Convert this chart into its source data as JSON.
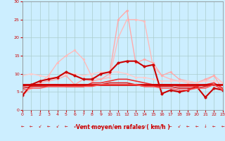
{
  "xlabel": "Vent moyen/en rafales ( km/h )",
  "xlim": [
    0,
    23
  ],
  "ylim": [
    0,
    30
  ],
  "yticks": [
    0,
    5,
    10,
    15,
    20,
    25,
    30
  ],
  "xticks": [
    0,
    1,
    2,
    3,
    4,
    5,
    6,
    7,
    8,
    9,
    10,
    11,
    12,
    13,
    14,
    15,
    16,
    17,
    18,
    19,
    20,
    21,
    22,
    23
  ],
  "background_color": "#cceeff",
  "grid_color": "#aacccc",
  "series": [
    {
      "x": [
        0,
        1,
        2,
        3,
        4,
        5,
        6,
        7,
        8,
        9,
        10,
        11,
        12,
        13,
        14,
        15,
        16,
        17,
        18,
        19,
        20,
        21,
        22,
        23
      ],
      "y": [
        4.0,
        6.0,
        7.5,
        9.5,
        13.0,
        15.0,
        16.5,
        14.0,
        9.0,
        8.5,
        9.0,
        20.0,
        25.0,
        25.0,
        24.5,
        12.0,
        9.5,
        8.5,
        8.0,
        7.5,
        7.5,
        8.0,
        9.5,
        7.5
      ],
      "color": "#ffbbbb",
      "lw": 1.0,
      "marker": "o",
      "ms": 2.0
    },
    {
      "x": [
        0,
        1,
        2,
        3,
        4,
        5,
        6,
        7,
        8,
        9,
        10,
        11,
        12,
        13,
        14,
        15,
        16,
        17,
        18,
        19,
        20,
        21,
        22,
        23
      ],
      "y": [
        4.5,
        6.5,
        7.5,
        8.0,
        8.5,
        9.5,
        7.0,
        8.5,
        8.0,
        8.5,
        10.0,
        25.0,
        27.5,
        13.0,
        14.0,
        13.0,
        9.5,
        10.5,
        8.5,
        8.0,
        7.5,
        8.5,
        9.5,
        5.5
      ],
      "color": "#ffaaaa",
      "lw": 1.0,
      "marker": "o",
      "ms": 2.0
    },
    {
      "x": [
        0,
        1,
        2,
        3,
        4,
        5,
        6,
        7,
        8,
        9,
        10,
        11,
        12,
        13,
        14,
        15,
        16,
        17,
        18,
        19,
        20,
        21,
        22,
        23
      ],
      "y": [
        9.5,
        10.0,
        9.5,
        9.0,
        9.0,
        10.0,
        10.0,
        9.5,
        10.0,
        10.5,
        10.5,
        10.5,
        10.0,
        9.0,
        9.0,
        8.5,
        8.0,
        8.0,
        8.0,
        8.0,
        7.5,
        8.0,
        8.0,
        7.5
      ],
      "color": "#ffcccc",
      "lw": 1.0,
      "marker": "o",
      "ms": 2.0
    },
    {
      "x": [
        0,
        1,
        2,
        3,
        4,
        5,
        6,
        7,
        8,
        9,
        10,
        11,
        12,
        13,
        14,
        15,
        16,
        17,
        18,
        19,
        20,
        21,
        22,
        23
      ],
      "y": [
        4.0,
        7.0,
        8.0,
        8.5,
        9.0,
        10.5,
        9.5,
        8.5,
        8.5,
        10.0,
        10.5,
        13.0,
        13.5,
        13.5,
        12.0,
        12.5,
        4.5,
        5.5,
        5.0,
        5.5,
        6.5,
        3.5,
        6.0,
        5.5
      ],
      "color": "#cc0000",
      "lw": 1.5,
      "marker": "o",
      "ms": 2.5
    },
    {
      "x": [
        0,
        1,
        2,
        3,
        4,
        5,
        6,
        7,
        8,
        9,
        10,
        11,
        12,
        13,
        14,
        15,
        16,
        17,
        18,
        19,
        20,
        21,
        22,
        23
      ],
      "y": [
        6.5,
        7.0,
        7.0,
        7.0,
        7.0,
        6.5,
        6.5,
        6.5,
        7.5,
        7.5,
        8.0,
        8.5,
        8.5,
        8.0,
        7.5,
        7.0,
        7.0,
        7.0,
        6.5,
        6.5,
        6.5,
        7.0,
        7.5,
        6.0
      ],
      "color": "#ee3333",
      "lw": 1.2,
      "marker": null,
      "ms": 0
    },
    {
      "x": [
        0,
        1,
        2,
        3,
        4,
        5,
        6,
        7,
        8,
        9,
        10,
        11,
        12,
        13,
        14,
        15,
        16,
        17,
        18,
        19,
        20,
        21,
        22,
        23
      ],
      "y": [
        7.0,
        7.0,
        7.0,
        7.0,
        7.0,
        7.0,
        7.0,
        7.0,
        7.0,
        7.0,
        7.0,
        7.0,
        7.0,
        7.0,
        7.0,
        7.0,
        7.0,
        7.0,
        7.0,
        7.0,
        7.0,
        7.0,
        7.0,
        7.0
      ],
      "color": "#cc0000",
      "lw": 2.0,
      "marker": null,
      "ms": 0
    },
    {
      "x": [
        0,
        1,
        2,
        3,
        4,
        5,
        6,
        7,
        8,
        9,
        10,
        11,
        12,
        13,
        14,
        15,
        16,
        17,
        18,
        19,
        20,
        21,
        22,
        23
      ],
      "y": [
        6.0,
        6.5,
        6.5,
        6.5,
        6.5,
        6.5,
        6.5,
        6.5,
        7.0,
        7.0,
        7.5,
        7.5,
        7.5,
        7.0,
        6.5,
        6.5,
        6.5,
        6.5,
        6.0,
        6.0,
        6.0,
        6.5,
        7.0,
        5.5
      ],
      "color": "#dd2222",
      "lw": 1.2,
      "marker": null,
      "ms": 0
    },
    {
      "x": [
        0,
        1,
        2,
        3,
        4,
        5,
        6,
        7,
        8,
        9,
        10,
        11,
        12,
        13,
        14,
        15,
        16,
        17,
        18,
        19,
        20,
        21,
        22,
        23
      ],
      "y": [
        5.5,
        6.0,
        6.0,
        6.5,
        6.5,
        6.5,
        6.5,
        6.5,
        6.5,
        7.0,
        7.0,
        7.0,
        7.0,
        7.0,
        6.5,
        6.5,
        6.0,
        6.0,
        5.5,
        5.5,
        6.0,
        6.0,
        7.0,
        5.5
      ],
      "color": "#ff5555",
      "lw": 1.0,
      "marker": null,
      "ms": 0
    }
  ],
  "arrow_color": "#cc0000"
}
